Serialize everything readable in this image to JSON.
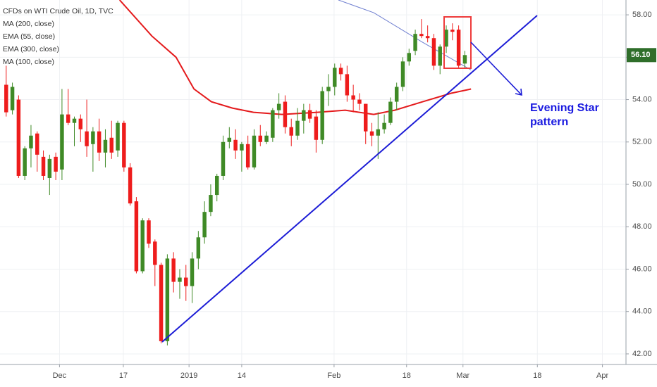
{
  "chart_data": {
    "type": "candlestick",
    "title": "CFDs on WTI Crude Oil, 1D, TVC",
    "indicators": [
      "MA (200, close)",
      "EMA (55, close)",
      "EMA (300, close)",
      "MA (100, close)"
    ],
    "annotation": [
      "Evening Star",
      "pattern"
    ],
    "up_color": "#3f8a26",
    "down_color": "#ee1c1c",
    "x": [
      1,
      2,
      3,
      4,
      5,
      6,
      7,
      8,
      9,
      10,
      11,
      12,
      13,
      14,
      15,
      16,
      17,
      18,
      19,
      20,
      21,
      22,
      23,
      24,
      25,
      26,
      27,
      28,
      29,
      30,
      31,
      32,
      33,
      34,
      35,
      36,
      37,
      38,
      39,
      40,
      41,
      42,
      43,
      44,
      45,
      46,
      47,
      48,
      49,
      50,
      51,
      52,
      53,
      54,
      55,
      56,
      57,
      58,
      59,
      60,
      61,
      62,
      63,
      64,
      65,
      66,
      67,
      68,
      69,
      70,
      71,
      72,
      73,
      74,
      75
    ],
    "open": [
      54.7,
      53.5,
      54.0,
      50.4,
      51.7,
      52.4,
      51.3,
      50.3,
      51.3,
      50.7,
      53.3,
      52.9,
      53.1,
      52.5,
      51.9,
      52.5,
      51.5,
      52.2,
      51.6,
      52.9,
      50.8,
      49.2,
      45.9,
      48.3,
      47.3,
      46.2,
      42.6,
      46.5,
      45.4,
      45.6,
      45.2,
      46.5,
      47.5,
      48.7,
      49.5,
      50.4,
      52.0,
      52.1,
      51.6,
      51.9,
      50.8,
      52.3,
      52.0,
      52.2,
      53.5,
      53.9,
      52.7,
      52.3,
      53.0,
      53.5,
      53.2,
      52.1,
      54.4,
      54.6,
      55.5,
      55.2,
      54.2,
      54.0,
      53.8,
      52.5,
      52.3,
      52.6,
      52.9,
      53.9,
      54.6,
      55.8,
      56.3,
      57.1,
      57.0,
      56.9,
      55.6,
      56.5,
      57.3,
      57.3,
      55.7
    ],
    "high": [
      55.6,
      54.8,
      54.2,
      51.8,
      52.8,
      52.5,
      51.6,
      51.4,
      51.5,
      54.5,
      54.5,
      53.2,
      53.3,
      54.0,
      52.7,
      53.1,
      52.6,
      53.0,
      53.0,
      53.0,
      51.0,
      49.4,
      48.4,
      48.4,
      47.4,
      46.3,
      46.7,
      46.8,
      46.0,
      46.2,
      46.8,
      47.8,
      49.2,
      50.0,
      50.5,
      52.3,
      52.7,
      52.6,
      52.0,
      52.3,
      52.6,
      52.8,
      52.5,
      53.6,
      54.3,
      54.2,
      53.1,
      53.6,
      53.8,
      53.8,
      53.5,
      54.6,
      55.2,
      55.7,
      55.7,
      55.6,
      54.7,
      54.3,
      53.8,
      52.9,
      53.4,
      53.3,
      54.1,
      54.8,
      56.0,
      56.4,
      57.3,
      57.8,
      57.5,
      57.1,
      56.6,
      57.5,
      57.6,
      57.5,
      56.3
    ],
    "low": [
      53.2,
      53.3,
      50.3,
      50.2,
      50.8,
      50.6,
      50.2,
      49.5,
      50.2,
      50.2,
      52.8,
      51.8,
      52.0,
      51.3,
      50.6,
      51.1,
      50.8,
      51.2,
      51.3,
      50.6,
      49.0,
      45.8,
      45.8,
      47.0,
      45.2,
      42.5,
      42.4,
      44.9,
      44.6,
      44.5,
      44.4,
      46.0,
      47.2,
      48.5,
      49.2,
      50.2,
      51.7,
      51.2,
      50.6,
      50.7,
      50.7,
      51.8,
      51.9,
      52.0,
      53.1,
      52.4,
      51.8,
      52.1,
      52.4,
      52.9,
      51.5,
      51.9,
      53.7,
      54.2,
      54.9,
      53.9,
      53.4,
      53.5,
      51.9,
      51.8,
      51.2,
      52.4,
      52.8,
      53.5,
      54.4,
      55.6,
      56.1,
      56.9,
      56.7,
      55.4,
      55.2,
      56.2,
      56.8,
      55.5,
      55.5
    ],
    "close": [
      53.4,
      54.6,
      50.4,
      51.7,
      52.3,
      51.4,
      50.4,
      51.2,
      50.6,
      53.3,
      52.9,
      53.1,
      52.6,
      51.8,
      52.5,
      51.5,
      52.1,
      51.5,
      52.9,
      50.8,
      49.1,
      45.9,
      48.3,
      47.2,
      46.2,
      42.6,
      46.5,
      45.4,
      45.6,
      45.2,
      46.5,
      47.5,
      48.7,
      49.5,
      50.4,
      52.0,
      52.2,
      51.6,
      51.9,
      50.8,
      52.3,
      52.0,
      52.3,
      53.5,
      53.8,
      52.7,
      52.3,
      53.0,
      53.5,
      53.1,
      52.1,
      54.4,
      54.6,
      55.5,
      55.2,
      54.2,
      54.0,
      53.8,
      52.5,
      52.3,
      52.6,
      52.9,
      53.9,
      54.6,
      55.8,
      56.2,
      57.1,
      57.0,
      56.9,
      55.6,
      56.5,
      57.3,
      57.2,
      55.6,
      56.1
    ],
    "series": [
      {
        "color": "#e41a1c",
        "x": [
          19.3,
          24.5,
          28.4,
          31.3,
          34.1,
          37.5,
          40.9,
          45.5,
          51.2,
          55.7,
          60.3,
          63.7,
          68.2,
          72.8,
          76.0
        ],
        "values": [
          58.7,
          57.0,
          56.0,
          54.5,
          53.9,
          53.6,
          53.4,
          53.3,
          53.4,
          53.5,
          53.3,
          53.5,
          53.9,
          54.3,
          54.5
        ]
      },
      {
        "color": "#6f7fd0",
        "x": [
          54.6,
          60.3,
          68.2,
          76.0
        ],
        "values": [
          58.7,
          58.1,
          56.7,
          55.4
        ]
      }
    ],
    "price_tag": {
      "value": 56.1,
      "label": "56.10"
    },
    "xlim": [
      0,
      101
    ],
    "ylim": [
      41.5,
      58.7
    ],
    "xticks": [
      {
        "value": 9.6,
        "label": "Dec"
      },
      {
        "value": 19.9,
        "label": "17"
      },
      {
        "value": 30.5,
        "label": "2019"
      },
      {
        "value": 39.0,
        "label": "14"
      },
      {
        "value": 53.9,
        "label": "Feb"
      },
      {
        "value": 65.6,
        "label": "18"
      },
      {
        "value": 74.7,
        "label": "Mar"
      },
      {
        "value": 86.7,
        "label": "18"
      },
      {
        "value": 97.2,
        "label": "Apr"
      }
    ],
    "yticks": [
      {
        "value": 42,
        "label": "42.00"
      },
      {
        "value": 44,
        "label": "44.00"
      },
      {
        "value": 46,
        "label": "46.00"
      },
      {
        "value": 48,
        "label": "48.00"
      },
      {
        "value": 50,
        "label": "50.00"
      },
      {
        "value": 52,
        "label": "52.00"
      },
      {
        "value": 54,
        "label": "54.00"
      },
      {
        "value": 56,
        "label": "56.00"
      },
      {
        "value": 58,
        "label": "58.00"
      }
    ],
    "grid": true
  }
}
